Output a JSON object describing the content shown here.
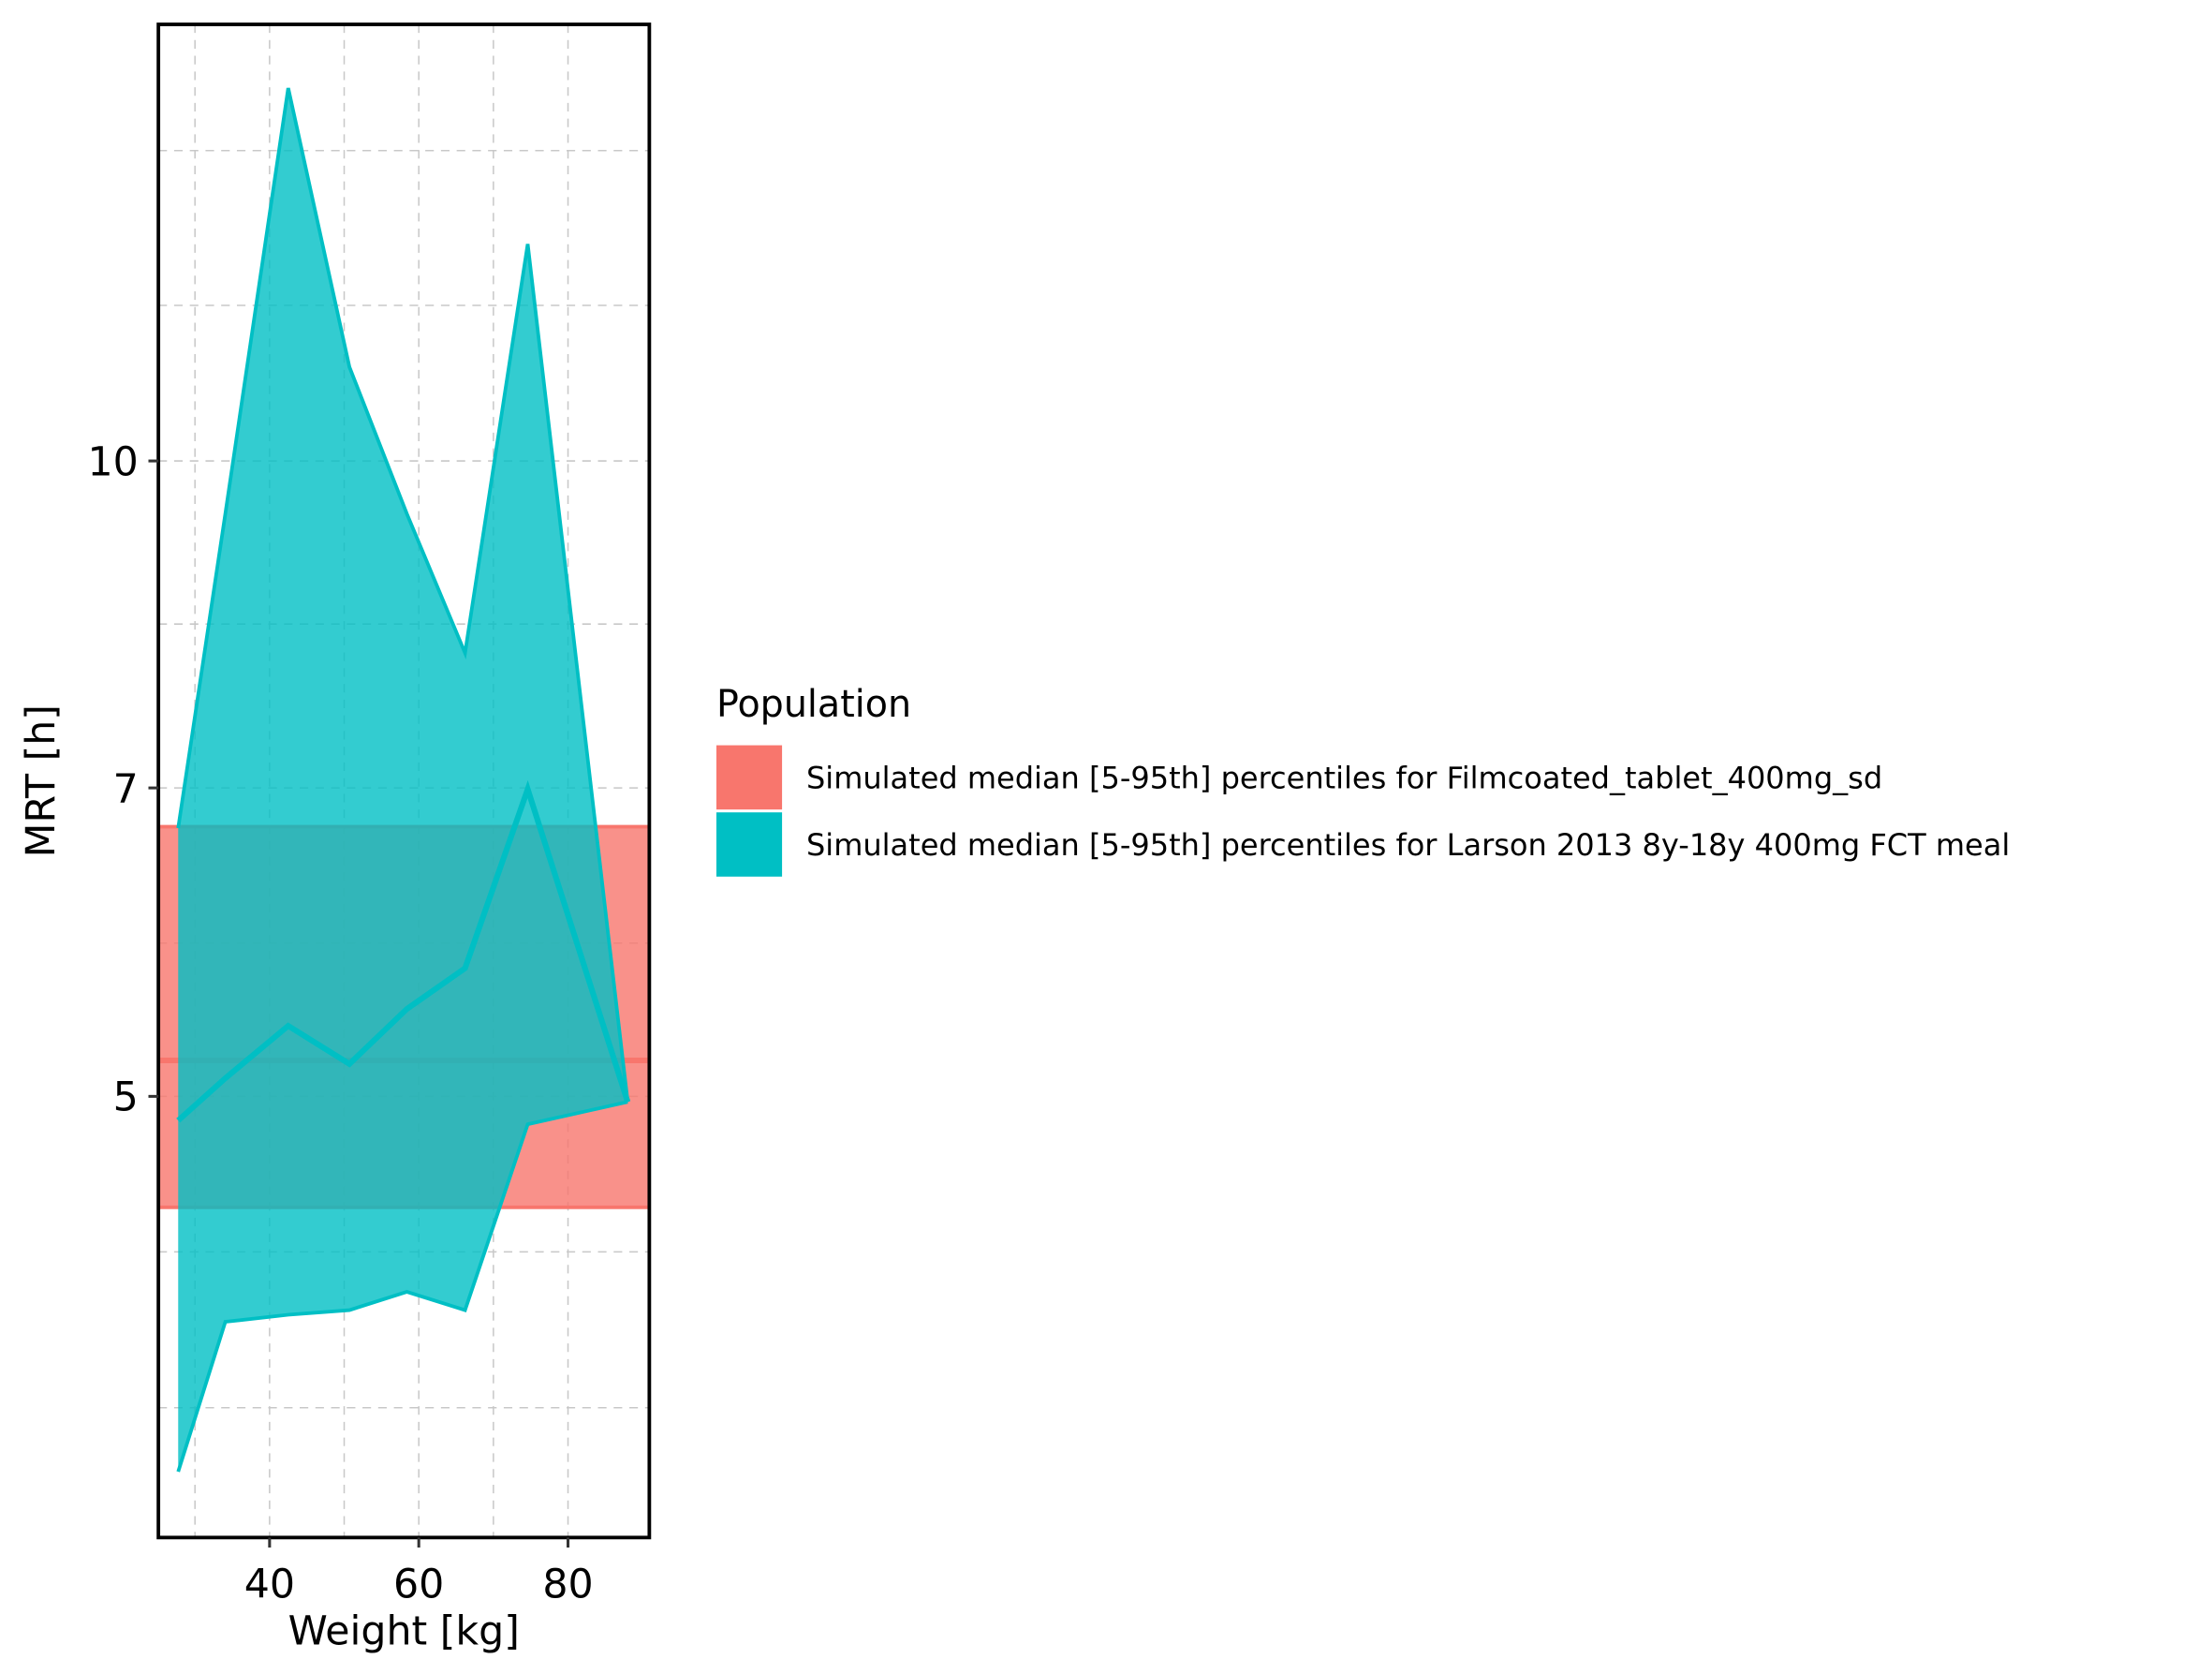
{
  "chart_data": {
    "type": "ribbon",
    "x_label": "Weight [kg]",
    "y_label": "MRT [h]",
    "legend_title": "Population",
    "legend_position": "right",
    "grid": true,
    "y_log": true,
    "xlim": [
      25.1,
      90.9
    ],
    "ylim": [
      3.09,
      16.1
    ],
    "xticks": [
      40,
      60,
      80
    ],
    "xminor": [
      30,
      50,
      70
    ],
    "yticks": [
      5,
      7,
      10
    ],
    "yminor": [
      3.56,
      4.22,
      5.91,
      8.37,
      11.85,
      14.03
    ],
    "series": [
      {
        "name": "Simulated median [5-95th] percentiles for Filmcoated_tablet_400mg_sd",
        "color": "#F8766D",
        "median": 5.2,
        "lower": 4.43,
        "upper": 6.71
      },
      {
        "name": "Simulated median [5-95th] percentiles for Larson 2013 8y-18y 400mg FCT meal",
        "color": "#00BFC4",
        "x": [
          27.75,
          34.07,
          42.5,
          50.7,
          58.4,
          66.2,
          74.6,
          88.0
        ],
        "median": [
          4.87,
          5.1,
          5.4,
          5.18,
          5.5,
          5.75,
          6.99,
          4.97
        ],
        "lower": [
          3.32,
          3.91,
          3.94,
          3.96,
          4.04,
          3.96,
          4.85,
          4.97
        ],
        "upper": [
          6.7,
          9.44,
          15.02,
          11.08,
          9.44,
          8.11,
          12.67,
          4.97
        ]
      }
    ]
  }
}
